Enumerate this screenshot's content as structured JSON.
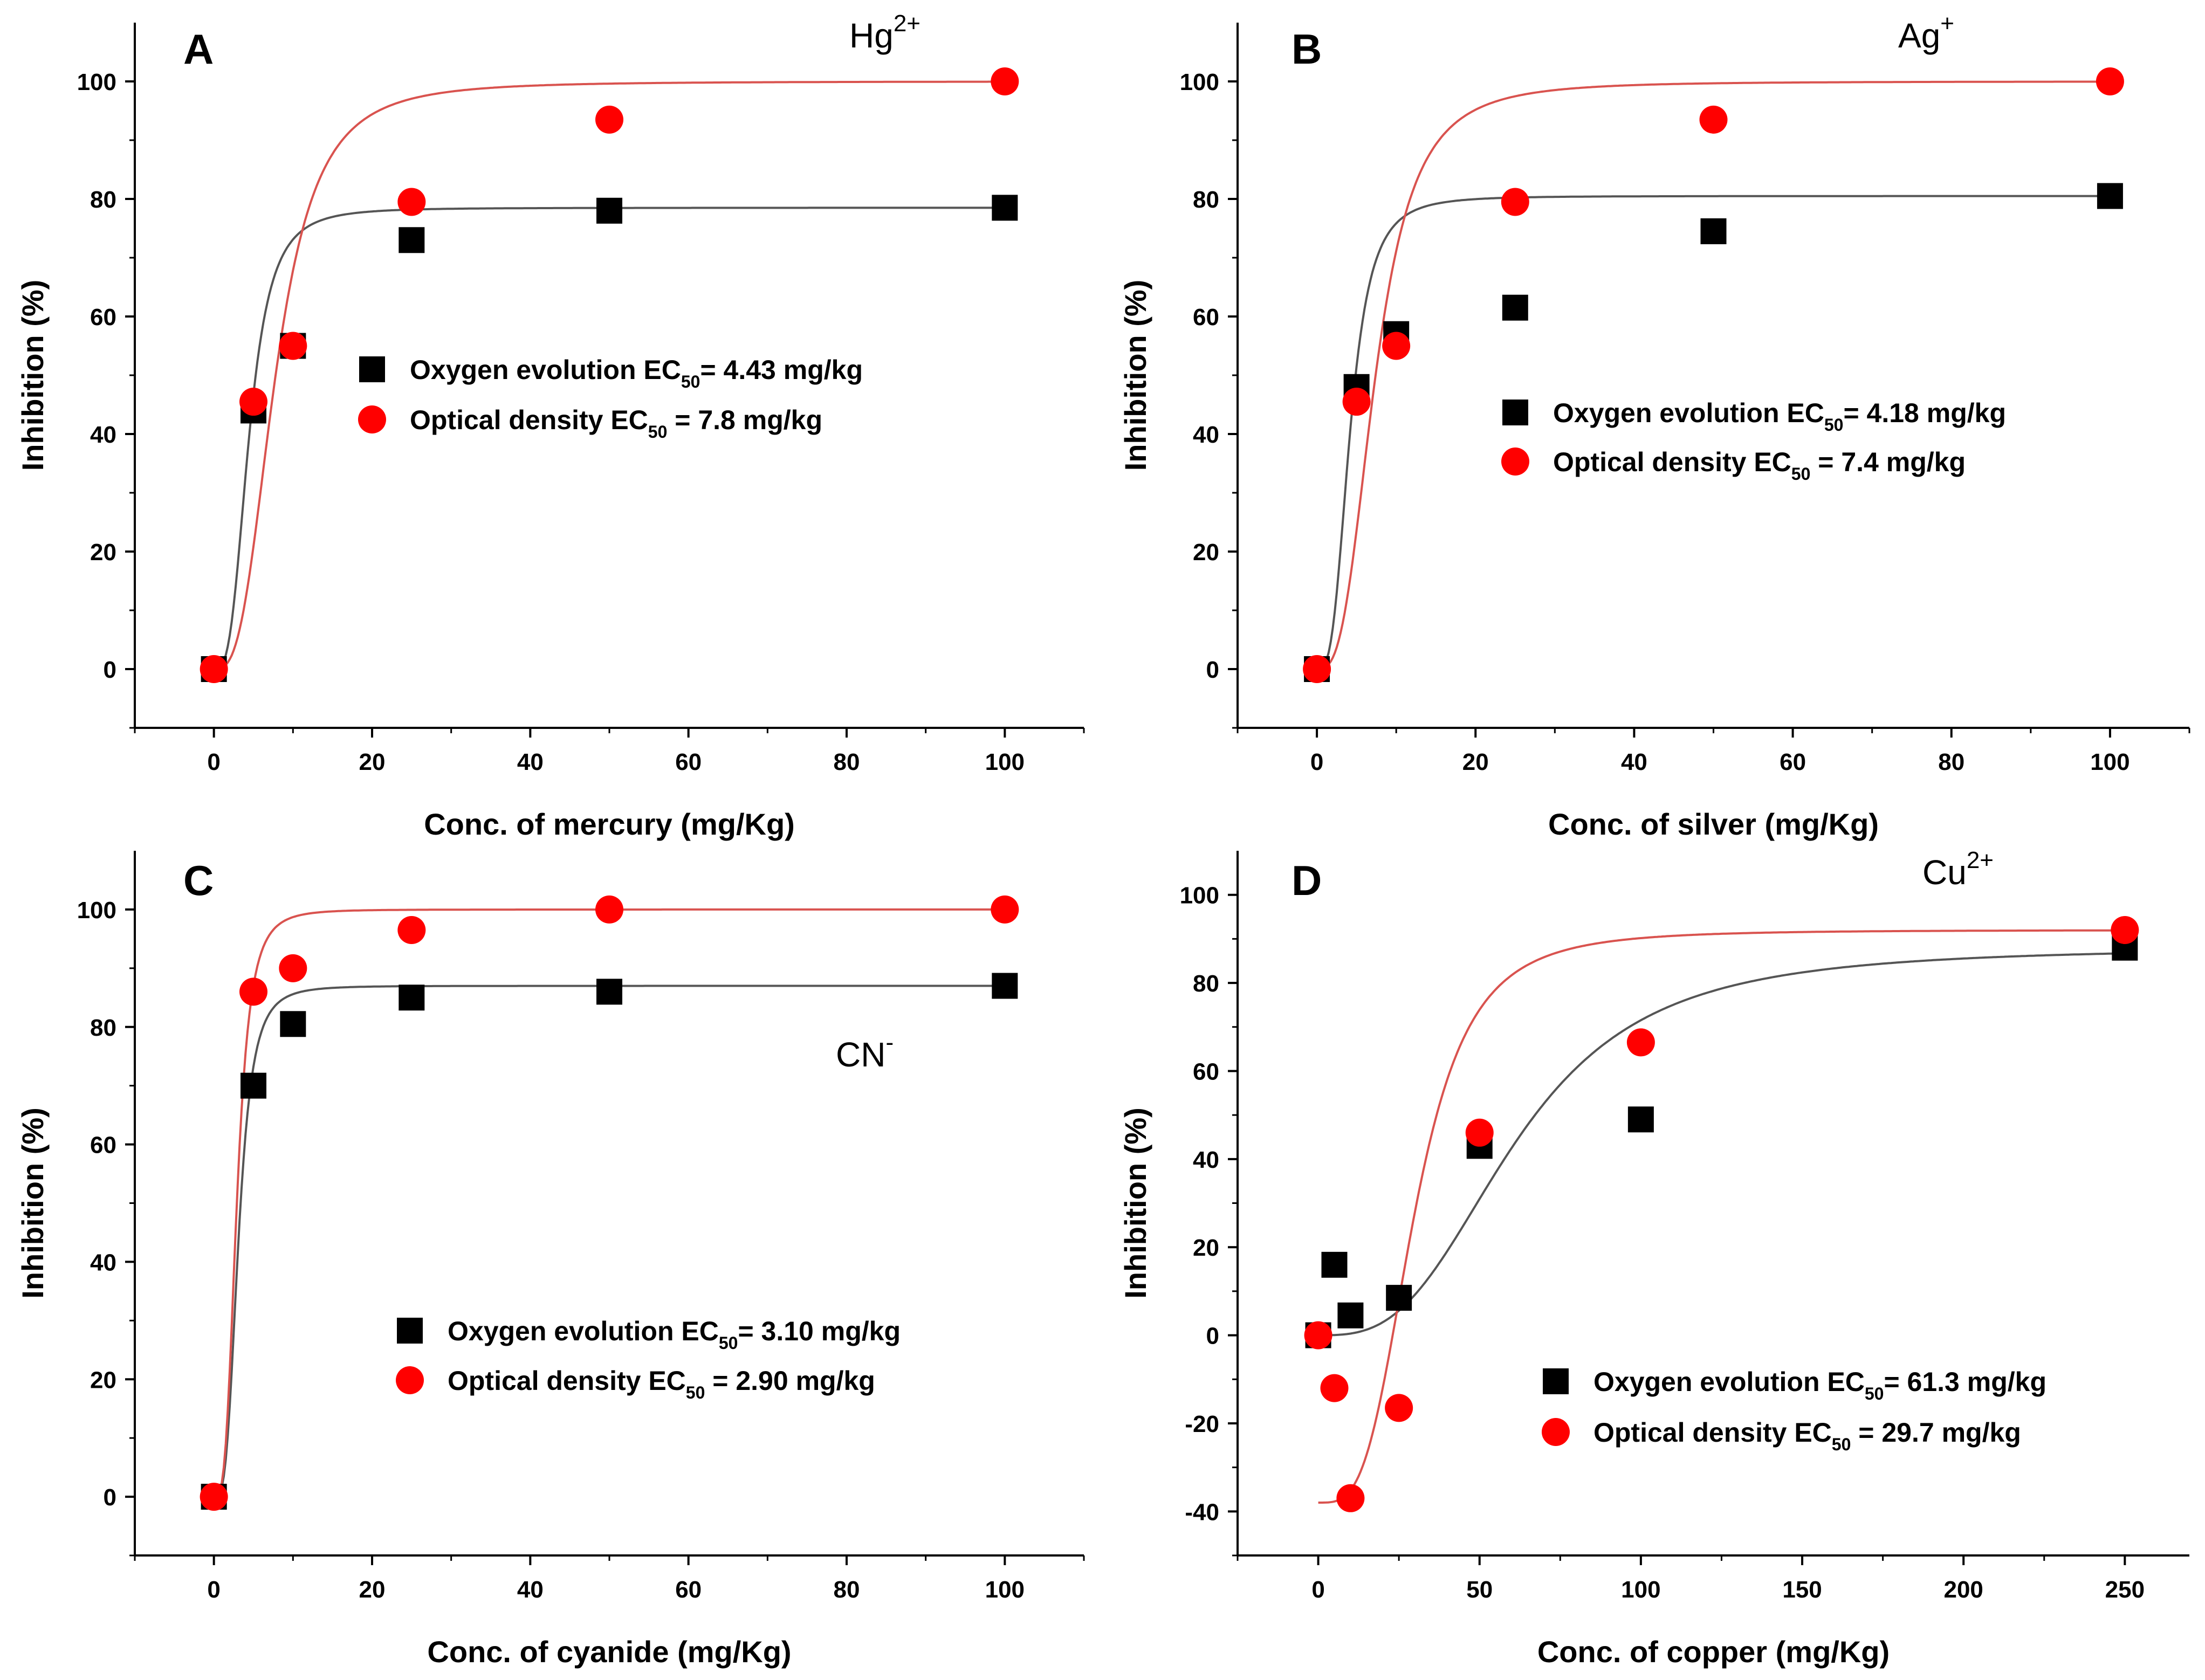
{
  "chart_data": [
    {
      "type": "scatter",
      "panel": "A",
      "ion": {
        "base": "Hg",
        "sup": "2+"
      },
      "xlabel": "Conc. of mercury (mg/Kg)",
      "ylabel": "Inhibition (%)",
      "xlim": [
        -10,
        110
      ],
      "ylim": [
        -10,
        110
      ],
      "xticks": [
        0,
        20,
        40,
        60,
        80,
        100
      ],
      "yticks": [
        0,
        20,
        40,
        60,
        80,
        100
      ],
      "series": [
        {
          "name": "Oxygen evolution",
          "legend": {
            "prefix": "Oxygen evolution EC",
            "sub": "50",
            "suffix": "= 4.43 mg/kg"
          },
          "marker": "square",
          "color": "#000000",
          "x": [
            0,
            5,
            10,
            25,
            50,
            100
          ],
          "y": [
            0,
            44,
            55,
            73,
            78,
            78.5
          ],
          "fit": {
            "type": "logistic",
            "A1": 0,
            "A2": 78.5,
            "x0": 4.43,
            "p": 3.2
          }
        },
        {
          "name": "Optical density",
          "legend": {
            "prefix": "Optical density EC",
            "sub": "50",
            "suffix": " = 7.8 mg/kg"
          },
          "marker": "circle",
          "color": "#ff0000",
          "x": [
            0,
            5,
            10,
            25,
            50,
            100
          ],
          "y": [
            0,
            45.5,
            55,
            79.5,
            93.5,
            100
          ],
          "fit": {
            "type": "logistic",
            "A1": 0,
            "A2": 100,
            "x0": 7.8,
            "p": 3.0
          }
        }
      ]
    },
    {
      "type": "scatter",
      "panel": "B",
      "ion": {
        "base": "Ag",
        "sup": "+"
      },
      "xlabel": "Conc. of silver (mg/Kg)",
      "ylabel": "Inhibition (%)",
      "xlim": [
        -10,
        110
      ],
      "ylim": [
        -10,
        110
      ],
      "xticks": [
        0,
        20,
        40,
        60,
        80,
        100
      ],
      "yticks": [
        0,
        20,
        40,
        60,
        80,
        100
      ],
      "series": [
        {
          "name": "Oxygen evolution",
          "legend": {
            "prefix": "Oxygen evolution EC",
            "sub": "50",
            "suffix": "= 4.18 mg/kg"
          },
          "marker": "square",
          "color": "#000000",
          "x": [
            0,
            5,
            10,
            25,
            50,
            100
          ],
          "y": [
            0,
            48,
            57,
            61.5,
            74.5,
            80.5
          ],
          "fit": {
            "type": "logistic",
            "A1": 0,
            "A2": 80.5,
            "x0": 4.18,
            "p": 3.2
          }
        },
        {
          "name": "Optical density",
          "legend": {
            "prefix": "Optical density EC",
            "sub": "50",
            "suffix": " = 7.4 mg/kg"
          },
          "marker": "circle",
          "color": "#ff0000",
          "x": [
            0,
            5,
            10,
            25,
            50,
            100
          ],
          "y": [
            0,
            45.5,
            55,
            79.5,
            93.5,
            100
          ],
          "fit": {
            "type": "logistic",
            "A1": 0,
            "A2": 100,
            "x0": 7.4,
            "p": 3.0
          }
        }
      ]
    },
    {
      "type": "scatter",
      "panel": "C",
      "ion": {
        "base": "CN",
        "sup": "-"
      },
      "xlabel": "Conc. of cyanide (mg/Kg)",
      "ylabel": "Inhibition (%)",
      "xlim": [
        -10,
        110
      ],
      "ylim": [
        -10,
        110
      ],
      "xticks": [
        0,
        20,
        40,
        60,
        80,
        100
      ],
      "yticks": [
        0,
        20,
        40,
        60,
        80,
        100
      ],
      "series": [
        {
          "name": "Oxygen evolution",
          "legend": {
            "prefix": "Oxygen evolution EC",
            "sub": "50",
            "suffix": "= 3.10 mg/kg"
          },
          "marker": "square",
          "color": "#000000",
          "x": [
            0,
            5,
            10,
            25,
            50,
            100
          ],
          "y": [
            0,
            70,
            80.5,
            85,
            86,
            87
          ],
          "fit": {
            "type": "logistic",
            "A1": 0,
            "A2": 87,
            "x0": 3.1,
            "p": 3.5
          }
        },
        {
          "name": "Optical density",
          "legend": {
            "prefix": "Optical density EC",
            "sub": "50",
            "suffix": " = 2.90 mg/kg"
          },
          "marker": "circle",
          "color": "#ff0000",
          "x": [
            0,
            5,
            10,
            25,
            50,
            100
          ],
          "y": [
            0,
            86,
            90,
            96.5,
            100,
            100
          ],
          "fit": {
            "type": "logistic",
            "A1": 0,
            "A2": 100,
            "x0": 2.9,
            "p": 3.5
          }
        }
      ]
    },
    {
      "type": "scatter",
      "panel": "D",
      "ion": {
        "base": "Cu",
        "sup": "2+"
      },
      "xlabel": "Conc. of copper (mg/Kg)",
      "ylabel": "Inhibition (%)",
      "xlim": [
        -25,
        270
      ],
      "ylim": [
        -50,
        110
      ],
      "xticks": [
        0,
        50,
        100,
        150,
        200,
        250
      ],
      "yticks": [
        -40,
        -20,
        0,
        20,
        40,
        60,
        80,
        100
      ],
      "series": [
        {
          "name": "Oxygen evolution",
          "legend": {
            "prefix": "Oxygen evolution EC",
            "sub": "50",
            "suffix": "= 61.3 mg/kg"
          },
          "marker": "square",
          "color": "#000000",
          "x": [
            0,
            5,
            10,
            25,
            50,
            100,
            250
          ],
          "y": [
            0,
            16,
            4.5,
            8.5,
            43,
            49,
            88
          ],
          "fit": {
            "type": "logistic",
            "A1": 0,
            "A2": 88,
            "x0": 61.3,
            "p": 3.0
          }
        },
        {
          "name": "Optical density",
          "legend": {
            "prefix": "Optical density EC",
            "sub": "50",
            "suffix": " = 29.7 mg/kg"
          },
          "marker": "circle",
          "color": "#ff0000",
          "x": [
            0,
            5,
            10,
            25,
            50,
            100,
            250
          ],
          "y": [
            0,
            -12,
            -37,
            -16.5,
            46,
            66.5,
            92
          ],
          "fit": {
            "type": "logistic",
            "A1": -38,
            "A2": 92,
            "x0": 29.7,
            "p": 3.5
          }
        }
      ]
    }
  ]
}
